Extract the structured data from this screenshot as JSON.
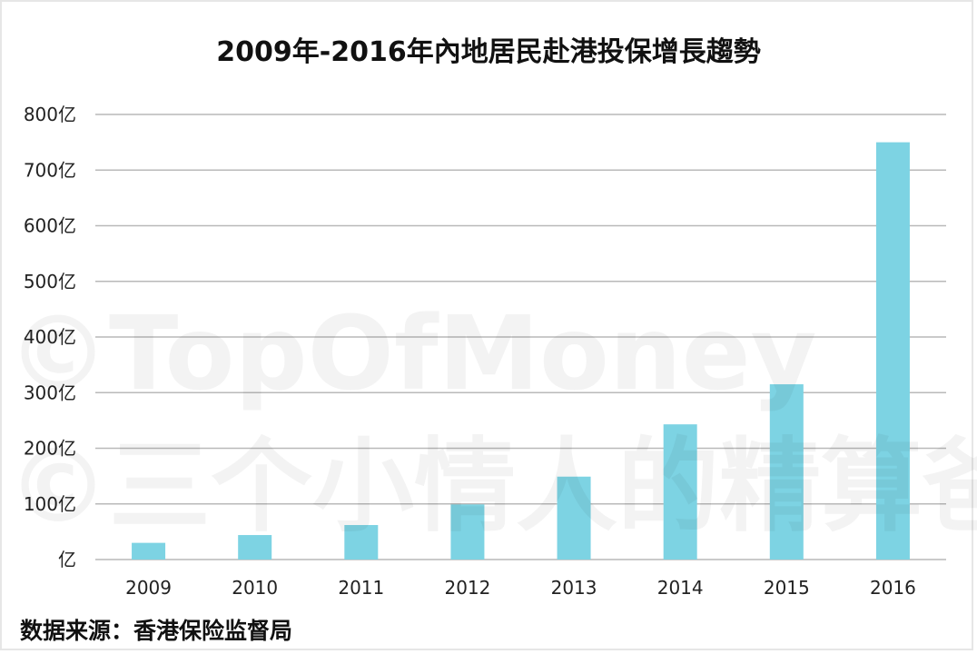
{
  "chart_data": {
    "type": "bar",
    "title": "2009年-2016年內地居民赴港投保增長趨勢",
    "categories": [
      "2009",
      "2010",
      "2011",
      "2012",
      "2013",
      "2014",
      "2015",
      "2016"
    ],
    "series": [
      {
        "values": [
          30,
          44,
          62,
          99,
          149,
          243,
          315,
          750
        ]
      }
    ],
    "ylim": [
      0,
      800
    ],
    "yticks": [
      0,
      100,
      200,
      300,
      400,
      500,
      600,
      700,
      800
    ],
    "ytick_labels": [
      "亿",
      "100亿",
      "200亿",
      "300亿",
      "400亿",
      "500亿",
      "600亿",
      "700亿",
      "800亿"
    ],
    "grid": true,
    "bar_color": "#7dd3e3"
  },
  "watermark": [
    "©TopOfMoney",
    "©三个小情人的精算爸"
  ],
  "source": "数据来源：香港保险监督局"
}
